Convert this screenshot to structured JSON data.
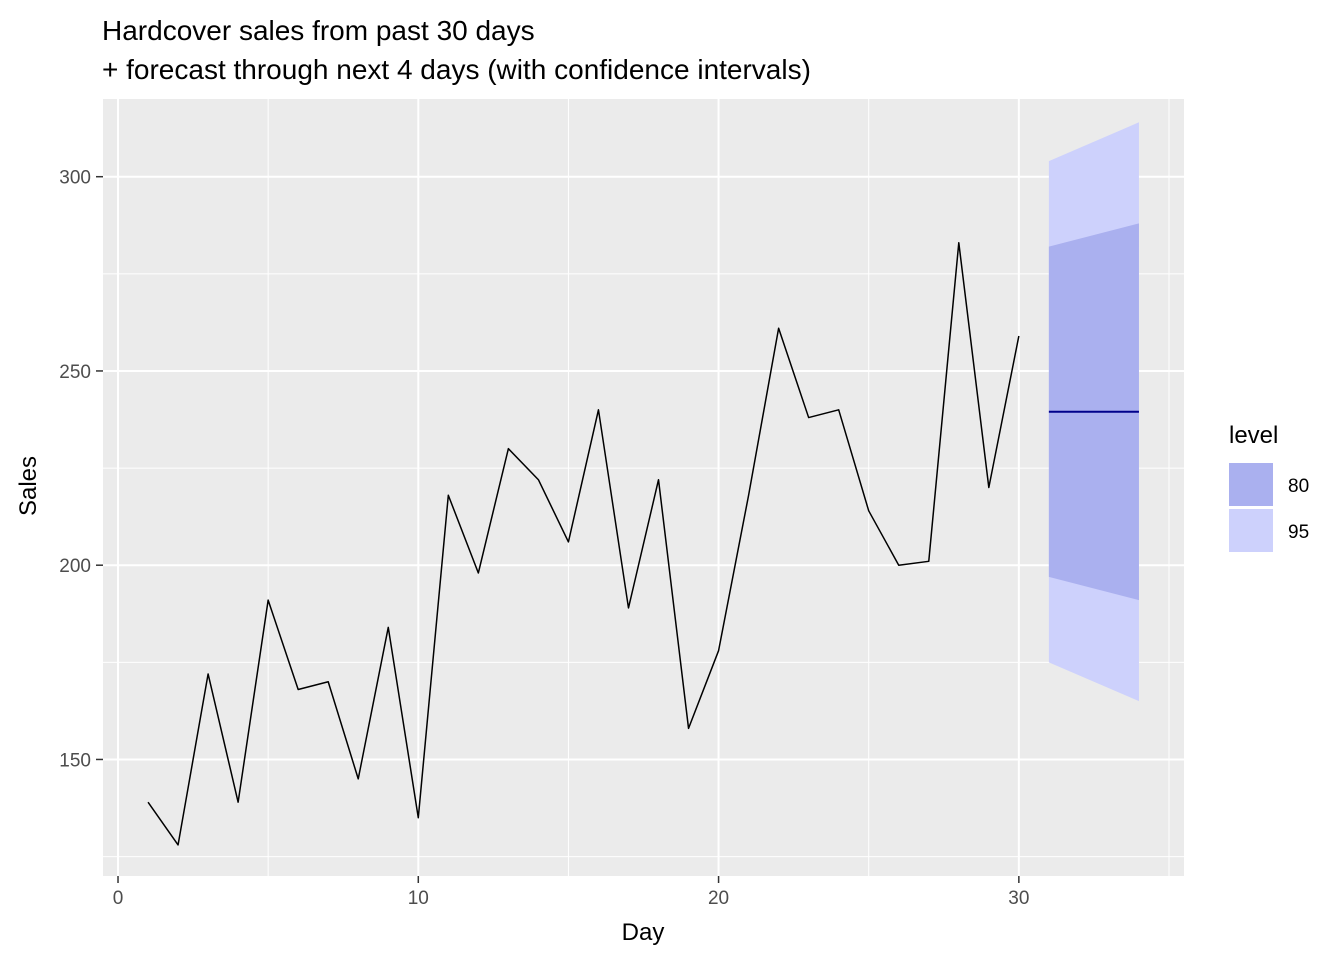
{
  "chart_data": {
    "type": "line",
    "title_lines": [
      "Hardcover sales from past 30 days",
      "+ forecast through next 4 days (with confidence intervals)"
    ],
    "xlabel": "Day",
    "ylabel": "Sales",
    "xlim": [
      -0.5,
      35.5
    ],
    "ylim": [
      120,
      320
    ],
    "x_ticks": [
      0,
      10,
      20,
      30
    ],
    "y_ticks": [
      150,
      200,
      250,
      300
    ],
    "grid": true,
    "panel_background": "#ebebeb",
    "series": [
      {
        "x": [
          1,
          2,
          3,
          4,
          5,
          6,
          7,
          8,
          9,
          10,
          11,
          12,
          13,
          14,
          15,
          16,
          17,
          18,
          19,
          20,
          21,
          22,
          23,
          24,
          25,
          26,
          27,
          28,
          29,
          30
        ],
        "values": [
          139,
          128,
          172,
          139,
          191,
          168,
          170,
          145,
          184,
          135,
          218,
          198,
          230,
          222,
          206,
          240,
          189,
          222,
          158,
          178,
          218,
          261,
          238,
          240,
          214,
          200,
          201,
          283,
          220,
          259
        ],
        "color": "#000000"
      }
    ],
    "forecast": {
      "x": [
        31,
        34
      ],
      "mean": [
        239.5,
        239.5
      ],
      "color": "#00008b",
      "intervals": [
        {
          "level": "80",
          "lower": [
            197,
            191
          ],
          "upper": [
            282,
            288
          ],
          "color": "#aab0ef"
        },
        {
          "level": "95",
          "lower": [
            175,
            165
          ],
          "upper": [
            304,
            314
          ],
          "color": "#cdd1fc"
        }
      ]
    },
    "legend": {
      "title": "level",
      "position": "right",
      "entries": [
        {
          "label": "80",
          "color": "#aab0ef"
        },
        {
          "label": "95",
          "color": "#cdd1fc"
        }
      ]
    }
  }
}
